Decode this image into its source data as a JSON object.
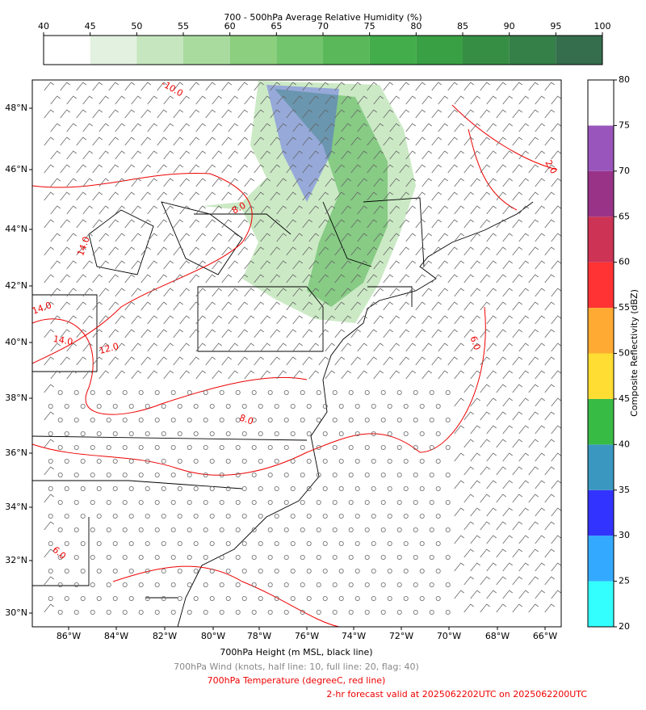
{
  "title": "700 - 500hPa Average Relative Humidity (%)",
  "humidity_colorbar": {
    "ticks": [
      40,
      45,
      50,
      55,
      60,
      65,
      70,
      75,
      80,
      85,
      90,
      95,
      100
    ],
    "colors": [
      "#ffffff",
      "#e3f2e0",
      "#c6e6bf",
      "#a9db9f",
      "#8bcf7f",
      "#72c46d",
      "#5ab85a",
      "#42ad4a",
      "#39a043",
      "#368e44",
      "#357f48",
      "#346e4c"
    ]
  },
  "reflectivity_colorbar": {
    "label": "Composite Reflectivity (dBZ)",
    "ticks": [
      20,
      25,
      30,
      35,
      40,
      45,
      50,
      55,
      60,
      65,
      70,
      75,
      80
    ],
    "colors": [
      "#33ffff",
      "#33aaff",
      "#3333ff",
      "#3a98c0",
      "#38bb44",
      "#ffdd33",
      "#ffaa33",
      "#ff3333",
      "#cc3355",
      "#993388",
      "#9955bb",
      "#ffffff"
    ]
  },
  "map": {
    "lat_labels": [
      "48°N",
      "46°N",
      "44°N",
      "42°N",
      "40°N",
      "38°N",
      "36°N",
      "34°N",
      "32°N",
      "30°N"
    ],
    "lon_labels": [
      "86°W",
      "84°W",
      "82°W",
      "80°W",
      "78°W",
      "76°W",
      "74°W",
      "72°W",
      "70°W",
      "68°W",
      "66°W"
    ],
    "contour_labels": [
      "-10.0",
      "14.0",
      "14.0",
      "14.0",
      "12.0",
      "8.0",
      "8.0",
      "6.0",
      "6.0",
      "2.0"
    ]
  },
  "captions": [
    "700hPa Height (m MSL, black line)",
    "700hPa Wind (knots, half line: 10, full line: 20, flag: 40)",
    "700hPa Temperature (degreeC, red line)",
    "2-hr forecast valid at 2025062202UTC on 2025062200UTC"
  ]
}
